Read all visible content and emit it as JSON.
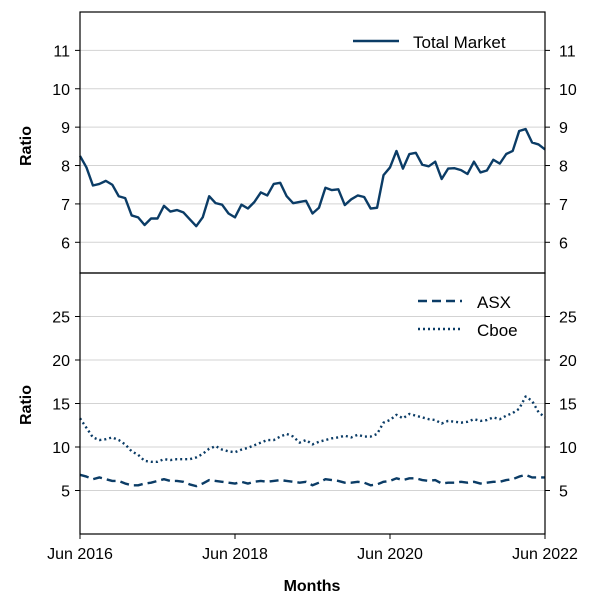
{
  "chart_data": [
    {
      "type": "line",
      "ylabel": "Ratio",
      "ylim": [
        5.2,
        12.0
      ],
      "yticks": [
        "6",
        "7",
        "8",
        "9",
        "10",
        "11"
      ],
      "grid": "horizontal",
      "legend_position": "top-right",
      "right_axis_mirrors_left": true,
      "series": [
        {
          "name": "Total Market",
          "style": "solid",
          "color": "#0b3c66",
          "values": [
            8.25,
            7.95,
            7.48,
            7.52,
            7.6,
            7.5,
            7.2,
            7.15,
            6.7,
            6.65,
            6.45,
            6.62,
            6.62,
            6.95,
            6.8,
            6.84,
            6.78,
            6.6,
            6.42,
            6.65,
            7.2,
            7.02,
            6.98,
            6.75,
            6.65,
            6.98,
            6.88,
            7.05,
            7.3,
            7.22,
            7.52,
            7.55,
            7.2,
            7.02,
            7.05,
            7.08,
            6.75,
            6.9,
            7.42,
            7.36,
            7.38,
            6.97,
            7.12,
            7.22,
            7.18,
            6.88,
            6.9,
            7.75,
            7.95,
            8.38,
            7.92,
            8.3,
            8.33,
            8.02,
            7.98,
            8.1,
            7.65,
            7.92,
            7.93,
            7.88,
            7.78,
            8.1,
            7.82,
            7.87,
            8.15,
            8.05,
            8.3,
            8.38,
            8.9,
            8.95,
            8.6,
            8.55,
            8.42
          ]
        }
      ]
    },
    {
      "type": "line",
      "ylabel": "Ratio",
      "xlabel": "Months",
      "ylim": [
        0,
        30
      ],
      "yticks": [
        "5",
        "10",
        "15",
        "20",
        "25"
      ],
      "xticks": [
        "Jun 2016",
        "Jun 2018",
        "Jun 2020",
        "Jun 2022"
      ],
      "x_start": "2016-06",
      "x_end": "2022-06",
      "grid": "horizontal",
      "legend_position": "top-right",
      "right_axis_mirrors_left": true,
      "series": [
        {
          "name": "ASX",
          "style": "dashed",
          "color": "#0b3c66",
          "values": [
            6.8,
            6.6,
            6.3,
            6.5,
            6.3,
            6.1,
            6.1,
            5.8,
            5.6,
            5.6,
            5.8,
            5.9,
            6.1,
            6.3,
            6.1,
            6.1,
            6.0,
            5.7,
            5.5,
            5.8,
            6.2,
            6.1,
            6.0,
            5.9,
            5.8,
            6.0,
            5.8,
            6.0,
            6.1,
            6.0,
            6.1,
            6.2,
            6.1,
            6.0,
            5.9,
            6.0,
            5.6,
            5.9,
            6.3,
            6.2,
            6.1,
            5.9,
            5.9,
            6.0,
            5.9,
            5.6,
            5.7,
            6.0,
            6.1,
            6.4,
            6.2,
            6.4,
            6.4,
            6.2,
            6.1,
            6.2,
            5.8,
            5.9,
            5.9,
            6.0,
            5.9,
            6.0,
            5.8,
            5.9,
            6.0,
            6.0,
            6.2,
            6.3,
            6.6,
            6.8,
            6.5,
            6.5,
            6.5
          ]
        },
        {
          "name": "Cboe",
          "style": "dotted",
          "color": "#0b3c66",
          "values": [
            13.3,
            12.2,
            11.1,
            10.8,
            10.9,
            11.1,
            10.8,
            10.3,
            9.5,
            9.1,
            8.4,
            8.3,
            8.3,
            8.6,
            8.5,
            8.6,
            8.6,
            8.6,
            8.8,
            9.2,
            9.8,
            10.1,
            9.7,
            9.5,
            9.4,
            9.7,
            9.9,
            10.2,
            10.5,
            10.8,
            10.8,
            11.2,
            11.5,
            11.2,
            10.5,
            10.8,
            10.3,
            10.6,
            10.8,
            11.0,
            11.1,
            11.3,
            11.1,
            11.4,
            11.2,
            11.2,
            11.5,
            12.8,
            13.1,
            13.7,
            13.3,
            13.8,
            13.6,
            13.4,
            13.2,
            13.1,
            12.7,
            13.0,
            12.9,
            12.8,
            12.9,
            13.2,
            13.0,
            13.1,
            13.4,
            13.2,
            13.6,
            13.9,
            14.4,
            15.8,
            15.3,
            14.0,
            13.4
          ]
        }
      ]
    }
  ]
}
